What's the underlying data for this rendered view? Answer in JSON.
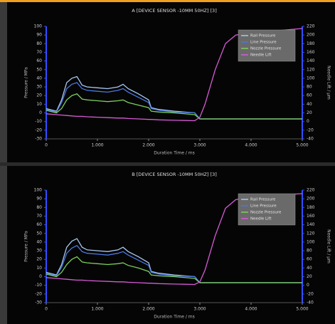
{
  "chart_data": [
    {
      "type": "line",
      "title": "A [DEVICE SENSOR -10MM 50HZ] [3]",
      "x_label": "Duration Time / ms",
      "y_label": "Pressure / MPa",
      "y2_label": "Needle Lift / µm",
      "x": [
        0,
        0.2,
        0.3,
        0.4,
        0.5,
        0.6,
        0.7,
        0.8,
        1.0,
        1.2,
        1.4,
        1.5,
        1.6,
        1.8,
        2.0,
        2.05,
        2.2,
        2.5,
        2.9,
        3.0,
        3.1,
        3.3,
        3.5,
        3.7,
        4.0,
        4.5,
        5.0
      ],
      "xlim": [
        0,
        5
      ],
      "xticks": [
        0,
        {
          "value": 1,
          "label": "1.000"
        },
        {
          "value": 2,
          "label": "2.000"
        },
        {
          "value": 3,
          "label": "3.000"
        },
        {
          "value": 4,
          "label": "4.000"
        },
        {
          "value": 5,
          "label": "5.000"
        }
      ],
      "ylim": [
        -30,
        100
      ],
      "yticks": [
        -30,
        -20,
        -10,
        0,
        10,
        20,
        30,
        40,
        50,
        60,
        70,
        80,
        90,
        100
      ],
      "y2lim": [
        -40,
        220
      ],
      "y2ticks": [
        -40,
        -20,
        0,
        20,
        40,
        60,
        80,
        100,
        120,
        140,
        160,
        180,
        200,
        220
      ],
      "series": [
        {
          "name": "Rail Pressure",
          "color": "#a8c8f0",
          "values": [
            5,
            2,
            15,
            35,
            40,
            42,
            32,
            30,
            29,
            28,
            30,
            33,
            28,
            22,
            15,
            6,
            4,
            2,
            0,
            -7,
            -7,
            -7,
            -7,
            -7,
            -7,
            -7,
            -7
          ]
        },
        {
          "name": "Line Pressure",
          "color": "#4a78e0",
          "values": [
            4,
            1,
            12,
            28,
            33,
            35,
            28,
            26,
            25,
            24,
            26,
            28,
            24,
            18,
            12,
            5,
            3,
            1,
            0,
            -7,
            -7,
            -7,
            -7,
            -7,
            -7,
            -7,
            -7
          ]
        },
        {
          "name": "Nozzle Pressure",
          "color": "#7ccf5a",
          "values": [
            3,
            0,
            5,
            15,
            20,
            22,
            16,
            15,
            14,
            13,
            14,
            15,
            12,
            9,
            6,
            2,
            1,
            0,
            -2,
            -7,
            -7,
            -7,
            -7,
            -7,
            -7,
            -7,
            -7
          ]
        },
        {
          "name": "Needle Lift",
          "color": "#d85ad8",
          "axis": "y2",
          "values": [
            18,
            16,
            15,
            14,
            13,
            12,
            12,
            11,
            10,
            9,
            8,
            8,
            7,
            6,
            5,
            5,
            4,
            3,
            2,
            10,
            40,
            120,
            180,
            200,
            205,
            210,
            215
          ]
        }
      ]
    },
    {
      "type": "line",
      "title": "B [DEVICE SENSOR -10MM 50HZ] [3]",
      "x_label": "Duration Time / ms",
      "y_label": "Pressure / MPa",
      "y2_label": "Needle Lift / µm",
      "x": [
        0,
        0.2,
        0.3,
        0.4,
        0.5,
        0.6,
        0.7,
        0.8,
        1.0,
        1.2,
        1.4,
        1.5,
        1.6,
        1.8,
        2.0,
        2.05,
        2.2,
        2.5,
        2.9,
        3.0,
        3.1,
        3.3,
        3.5,
        3.7,
        4.0,
        4.5,
        5.0
      ],
      "xlim": [
        0,
        5
      ],
      "xticks": [
        0,
        {
          "value": 1,
          "label": "1.000"
        },
        {
          "value": 2,
          "label": "2.000"
        },
        {
          "value": 3,
          "label": "3.000"
        },
        {
          "value": 4,
          "label": "4.000"
        },
        {
          "value": 5,
          "label": "5.000"
        }
      ],
      "ylim": [
        -30,
        100
      ],
      "yticks": [
        -30,
        -20,
        -10,
        0,
        10,
        20,
        30,
        40,
        50,
        60,
        70,
        80,
        90,
        100
      ],
      "y2lim": [
        -40,
        220
      ],
      "y2ticks": [
        -40,
        -20,
        0,
        20,
        40,
        60,
        80,
        100,
        120,
        140,
        160,
        180,
        200,
        220
      ],
      "series": [
        {
          "name": "Rail Pressure",
          "color": "#a8c8f0",
          "values": [
            5,
            2,
            14,
            34,
            41,
            44,
            34,
            31,
            30,
            29,
            31,
            34,
            29,
            23,
            16,
            6,
            4,
            2,
            0,
            -7,
            -7,
            -7,
            -7,
            -7,
            -7,
            -7,
            -7
          ]
        },
        {
          "name": "Line Pressure",
          "color": "#4a78e0",
          "values": [
            4,
            1,
            11,
            27,
            33,
            36,
            29,
            27,
            26,
            25,
            27,
            29,
            25,
            19,
            13,
            5,
            3,
            1,
            0,
            -7,
            -7,
            -7,
            -7,
            -7,
            -7,
            -7,
            -7
          ]
        },
        {
          "name": "Nozzle Pressure",
          "color": "#7ccf5a",
          "values": [
            3,
            0,
            5,
            14,
            20,
            23,
            17,
            16,
            15,
            14,
            15,
            16,
            13,
            10,
            6,
            2,
            1,
            0,
            -2,
            -7,
            -7,
            -7,
            -7,
            -7,
            -7,
            -7,
            -7
          ]
        },
        {
          "name": "Needle Lift",
          "color": "#d85ad8",
          "axis": "y2",
          "values": [
            18,
            16,
            15,
            14,
            13,
            12,
            12,
            11,
            10,
            9,
            8,
            8,
            7,
            6,
            5,
            5,
            4,
            3,
            2,
            8,
            35,
            115,
            178,
            198,
            204,
            208,
            212
          ]
        }
      ]
    }
  ]
}
